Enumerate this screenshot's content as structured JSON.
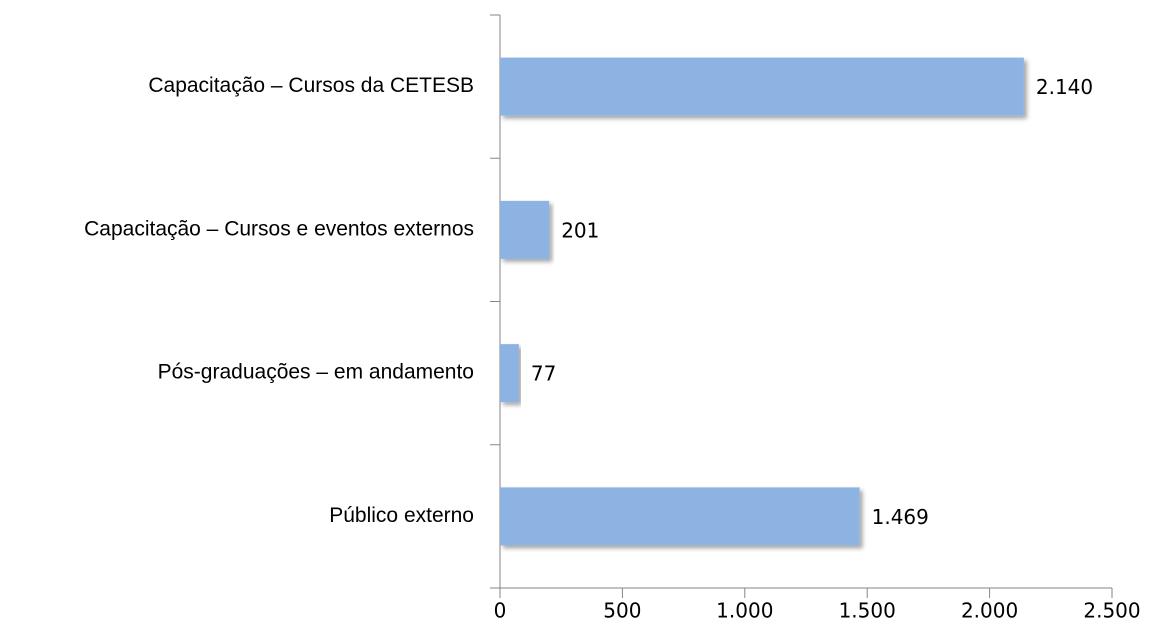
{
  "chart_data": {
    "type": "barh",
    "categories": [
      "Capacitação – Cursos da CETESB",
      "Capacitação – Cursos e eventos externos",
      "Pós-graduações – em andamento",
      "Público externo"
    ],
    "values": [
      2140,
      201,
      77,
      1469
    ],
    "value_labels": [
      "2.140",
      "201",
      "77",
      "1.469"
    ],
    "color": "#8db3e2",
    "xlim": [
      0,
      2500
    ],
    "xticks": [
      0,
      500,
      {
        "value": 1000,
        "label": "1.000"
      },
      {
        "value": 1500,
        "label": "1.500"
      },
      {
        "value": 2000,
        "label": "2.000"
      },
      {
        "value": 2500,
        "label": "2.500"
      }
    ],
    "grid": false
  }
}
